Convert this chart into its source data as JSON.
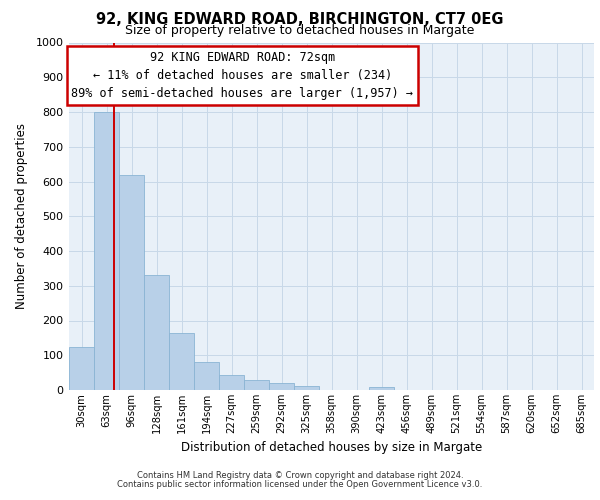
{
  "title": "92, KING EDWARD ROAD, BIRCHINGTON, CT7 0EG",
  "subtitle": "Size of property relative to detached houses in Margate",
  "bar_labels": [
    "30sqm",
    "63sqm",
    "96sqm",
    "128sqm",
    "161sqm",
    "194sqm",
    "227sqm",
    "259sqm",
    "292sqm",
    "325sqm",
    "358sqm",
    "390sqm",
    "423sqm",
    "456sqm",
    "489sqm",
    "521sqm",
    "554sqm",
    "587sqm",
    "620sqm",
    "652sqm",
    "685sqm"
  ],
  "bar_values": [
    125,
    800,
    620,
    330,
    163,
    80,
    42,
    30,
    20,
    12,
    0,
    0,
    8,
    0,
    0,
    0,
    0,
    0,
    0,
    0,
    0
  ],
  "bar_color": "#b8d0e8",
  "bar_edge_color": "#8ab4d4",
  "ylim": [
    0,
    1000
  ],
  "yticks": [
    0,
    100,
    200,
    300,
    400,
    500,
    600,
    700,
    800,
    900,
    1000
  ],
  "ylabel": "Number of detached properties",
  "xlabel": "Distribution of detached houses by size in Margate",
  "annotation_title": "92 KING EDWARD ROAD: 72sqm",
  "annotation_line1": "← 11% of detached houses are smaller (234)",
  "annotation_line2": "89% of semi-detached houses are larger (1,957) →",
  "annotation_box_facecolor": "#ffffff",
  "annotation_box_edgecolor": "#cc0000",
  "vline_color": "#cc0000",
  "vline_x_index": 1.28,
  "grid_color": "#c8d8e8",
  "bg_color": "#e8f0f8",
  "footer_line1": "Contains HM Land Registry data © Crown copyright and database right 2024.",
  "footer_line2": "Contains public sector information licensed under the Open Government Licence v3.0."
}
